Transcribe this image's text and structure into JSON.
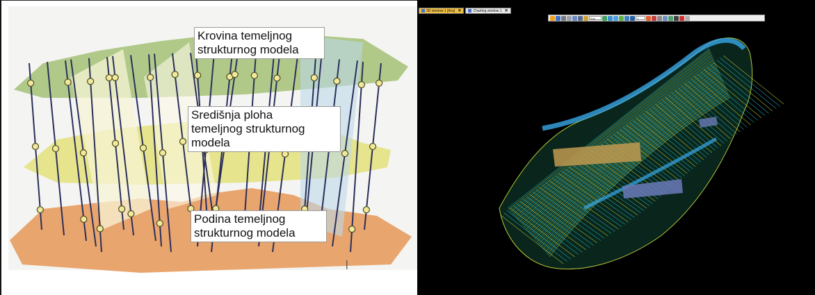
{
  "left_figure": {
    "labels": {
      "roof": "Krovina temeljnog\nstrukturnog modela",
      "middle": "Središnja ploha\ntemeljnog strukturnog\nmodela",
      "floor": "Podina temeljnog\nstrukturnog modela"
    },
    "colors": {
      "roof_surface": "#a9c47d",
      "middle_surface": "#e3e07a",
      "floor_surface": "#e8a066",
      "well_line": "#2a2f5a",
      "marker_fill": "#f1e89a",
      "marker_stroke": "#4a4a20"
    }
  },
  "viewer": {
    "tabs": [
      {
        "label": "3D window 1 [Any]",
        "active": true,
        "close": "✕"
      },
      {
        "label": "Charting window 1",
        "active": false,
        "close": "✕"
      }
    ],
    "toolbar": {
      "select_1": "Any",
      "select_2": "1"
    },
    "colors": {
      "background": "#000000",
      "mesh_primary": "#22c8d8",
      "mesh_secondary": "#c8e040",
      "surface_band": "#c09a50"
    }
  }
}
